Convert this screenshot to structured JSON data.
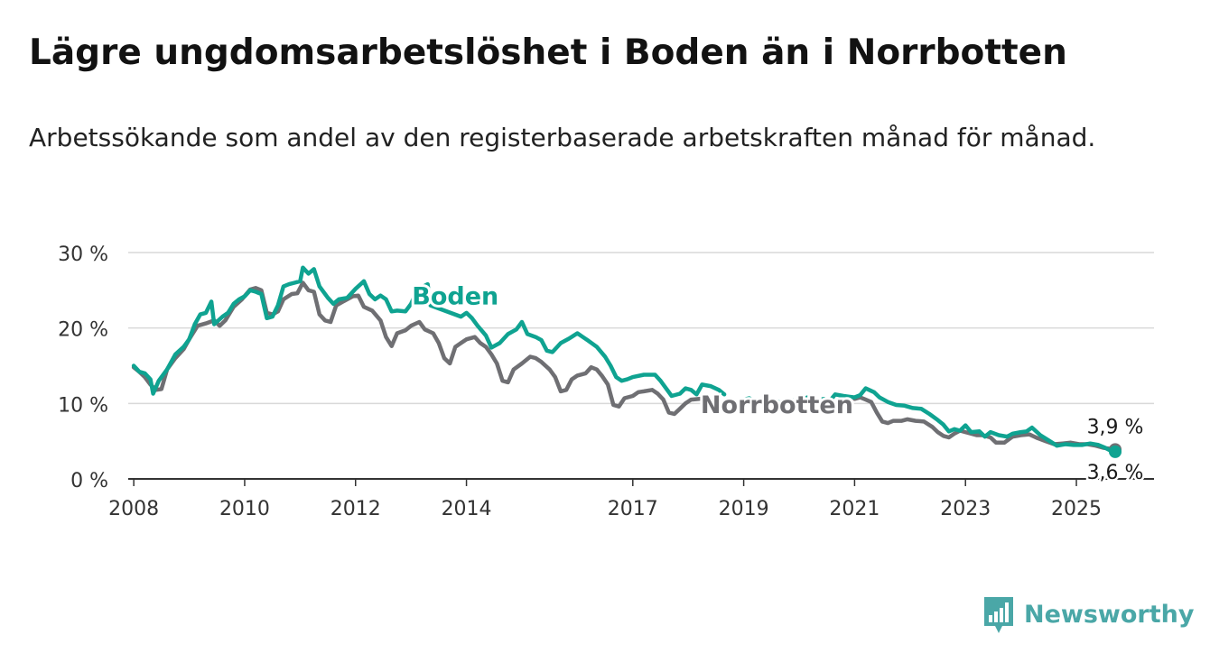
{
  "title": "Lägre ungdomsarbetslöshet i Boden än i Norrbotten",
  "subtitle": "Arbetssökande som andel av den registerbaserade arbetskraften månad för månad.",
  "brand": {
    "name": "Newsworthy",
    "icon": "newsworthy-logo-icon"
  },
  "colors": {
    "boden": "#0fa391",
    "norrbotten": "#6f6f73",
    "grid": "#d9d9d9",
    "axis": "#333333"
  },
  "chart_data": {
    "type": "line",
    "ylim": [
      0,
      30
    ],
    "xlim": [
      2007.9,
      2026.4
    ],
    "yticks": [
      {
        "value": 0,
        "label": "0 %"
      },
      {
        "value": 10,
        "label": "10 %"
      },
      {
        "value": 20,
        "label": "20 %"
      },
      {
        "value": 30,
        "label": "30 %"
      }
    ],
    "xticks": [
      {
        "value": 2008,
        "label": "2008"
      },
      {
        "value": 2010,
        "label": "2010"
      },
      {
        "value": 2012,
        "label": "2012"
      },
      {
        "value": 2014,
        "label": "2014"
      },
      {
        "value": 2017,
        "label": "2017"
      },
      {
        "value": 2019,
        "label": "2019"
      },
      {
        "value": 2021,
        "label": "2021"
      },
      {
        "value": 2023,
        "label": "2023"
      },
      {
        "value": 2025,
        "label": "2025"
      }
    ],
    "grid": true,
    "series": [
      {
        "name": "Boden",
        "color_key": "boden",
        "end_label": "3,6 %",
        "points": [
          [
            2008.0,
            15.0
          ],
          [
            2008.1,
            14.2
          ],
          [
            2008.2,
            14.0
          ],
          [
            2008.3,
            13.2
          ],
          [
            2008.35,
            11.3
          ],
          [
            2008.45,
            13.0
          ],
          [
            2008.6,
            14.5
          ],
          [
            2008.75,
            16.5
          ],
          [
            2008.9,
            17.5
          ],
          [
            2009.0,
            18.5
          ],
          [
            2009.1,
            20.5
          ],
          [
            2009.2,
            21.8
          ],
          [
            2009.3,
            22.0
          ],
          [
            2009.4,
            23.5
          ],
          [
            2009.45,
            20.5
          ],
          [
            2009.6,
            21.5
          ],
          [
            2009.7,
            22.0
          ],
          [
            2009.8,
            23.2
          ],
          [
            2009.9,
            23.8
          ],
          [
            2010.0,
            24.2
          ],
          [
            2010.1,
            25.0
          ],
          [
            2010.2,
            24.8
          ],
          [
            2010.3,
            24.5
          ],
          [
            2010.4,
            21.3
          ],
          [
            2010.5,
            21.5
          ],
          [
            2010.6,
            23.0
          ],
          [
            2010.7,
            25.5
          ],
          [
            2010.8,
            25.8
          ],
          [
            2010.9,
            26.0
          ],
          [
            2011.0,
            26.2
          ],
          [
            2011.05,
            28.0
          ],
          [
            2011.15,
            27.2
          ],
          [
            2011.25,
            27.8
          ],
          [
            2011.35,
            25.5
          ],
          [
            2011.5,
            24.0
          ],
          [
            2011.6,
            23.2
          ],
          [
            2011.7,
            23.8
          ],
          [
            2011.85,
            24.0
          ],
          [
            2012.0,
            25.2
          ],
          [
            2012.15,
            26.2
          ],
          [
            2012.25,
            24.5
          ],
          [
            2012.35,
            23.8
          ],
          [
            2012.45,
            24.3
          ],
          [
            2012.55,
            23.8
          ],
          [
            2012.65,
            22.2
          ],
          [
            2012.75,
            22.3
          ],
          [
            2012.9,
            22.2
          ],
          [
            2013.0,
            23.2
          ],
          [
            2013.1,
            24.8
          ],
          [
            2013.2,
            25.4
          ],
          [
            2013.3,
            25.8
          ],
          [
            2013.35,
            23.0
          ],
          [
            2013.9,
            21.5
          ],
          [
            2014.0,
            22.0
          ],
          [
            2014.1,
            21.3
          ],
          [
            2014.2,
            20.3
          ],
          [
            2014.35,
            19.0
          ],
          [
            2014.45,
            17.4
          ],
          [
            2014.6,
            18.0
          ],
          [
            2014.75,
            19.2
          ],
          [
            2014.9,
            19.8
          ],
          [
            2015.0,
            20.8
          ],
          [
            2015.1,
            19.2
          ],
          [
            2015.25,
            18.8
          ],
          [
            2015.35,
            18.4
          ],
          [
            2015.45,
            17.0
          ],
          [
            2015.55,
            16.8
          ],
          [
            2015.7,
            18.0
          ],
          [
            2015.85,
            18.6
          ],
          [
            2016.0,
            19.3
          ],
          [
            2016.1,
            18.8
          ],
          [
            2016.2,
            18.3
          ],
          [
            2016.35,
            17.5
          ],
          [
            2016.5,
            16.2
          ],
          [
            2016.6,
            15.0
          ],
          [
            2016.7,
            13.5
          ],
          [
            2016.8,
            13.0
          ],
          [
            2016.9,
            13.2
          ],
          [
            2017.0,
            13.5
          ],
          [
            2017.2,
            13.8
          ],
          [
            2017.4,
            13.8
          ],
          [
            2017.5,
            13.0
          ],
          [
            2017.6,
            12.0
          ],
          [
            2017.7,
            11.0
          ],
          [
            2017.85,
            11.3
          ],
          [
            2017.95,
            12.0
          ],
          [
            2018.05,
            11.8
          ],
          [
            2018.15,
            11.2
          ],
          [
            2018.25,
            12.5
          ],
          [
            2018.4,
            12.3
          ],
          [
            2018.55,
            11.8
          ],
          [
            2018.65,
            11.2
          ]
        ],
        "points2": [
          [
            2019.0,
            10.5
          ],
          [
            2019.1,
            10.7
          ],
          [
            2019.2,
            10.3
          ],
          [
            2019.3,
            10.5
          ],
          [
            2019.4,
            10.0
          ],
          [
            2019.5,
            10.0
          ],
          [
            2019.6,
            10.3
          ],
          [
            2019.7,
            9.9
          ],
          [
            2019.8,
            10.1
          ],
          [
            2019.9,
            10.4
          ],
          [
            2020.0,
            10.4
          ],
          [
            2020.15,
            10.8
          ],
          [
            2020.25,
            10.6
          ],
          [
            2020.35,
            10.5
          ],
          [
            2020.45,
            10.6
          ],
          [
            2020.55,
            10.3
          ],
          [
            2020.65,
            11.2
          ],
          [
            2020.8,
            11.0
          ],
          [
            2020.9,
            10.9
          ],
          [
            2021.0,
            10.8
          ],
          [
            2021.1,
            11.1
          ],
          [
            2021.2,
            12.0
          ],
          [
            2021.35,
            11.5
          ],
          [
            2021.45,
            10.8
          ],
          [
            2021.6,
            10.2
          ],
          [
            2021.75,
            9.8
          ],
          [
            2021.9,
            9.7
          ],
          [
            2022.05,
            9.4
          ],
          [
            2022.2,
            9.3
          ],
          [
            2022.35,
            8.6
          ],
          [
            2022.5,
            7.8
          ],
          [
            2022.6,
            7.2
          ],
          [
            2022.7,
            6.3
          ],
          [
            2022.8,
            6.6
          ],
          [
            2022.9,
            6.4
          ],
          [
            2023.0,
            7.1
          ],
          [
            2023.1,
            6.2
          ],
          [
            2023.25,
            6.3
          ],
          [
            2023.35,
            5.6
          ],
          [
            2023.45,
            6.2
          ],
          [
            2023.6,
            5.8
          ],
          [
            2023.75,
            5.6
          ],
          [
            2023.85,
            6.0
          ],
          [
            2024.0,
            6.2
          ],
          [
            2024.1,
            6.3
          ],
          [
            2024.2,
            6.8
          ],
          [
            2024.35,
            5.8
          ],
          [
            2024.5,
            5.1
          ],
          [
            2024.65,
            4.4
          ],
          [
            2024.8,
            4.6
          ],
          [
            2024.95,
            4.5
          ],
          [
            2025.1,
            4.5
          ],
          [
            2025.25,
            4.7
          ],
          [
            2025.4,
            4.5
          ],
          [
            2025.5,
            4.2
          ],
          [
            2025.6,
            3.8
          ],
          [
            2025.7,
            3.6
          ]
        ]
      },
      {
        "name": "Norrbotten",
        "color_key": "norrbotten",
        "end_label": "3,9 %",
        "points": [
          [
            2008.0,
            14.8
          ],
          [
            2008.1,
            14.2
          ],
          [
            2008.2,
            13.5
          ],
          [
            2008.3,
            12.5
          ],
          [
            2008.4,
            11.8
          ],
          [
            2008.5,
            11.9
          ],
          [
            2008.6,
            14.5
          ],
          [
            2008.75,
            16.0
          ],
          [
            2008.9,
            17.2
          ],
          [
            2009.0,
            18.5
          ],
          [
            2009.15,
            20.3
          ],
          [
            2009.3,
            20.6
          ],
          [
            2009.45,
            21.0
          ],
          [
            2009.55,
            20.3
          ],
          [
            2009.65,
            21.0
          ],
          [
            2009.8,
            22.8
          ],
          [
            2009.95,
            23.8
          ],
          [
            2010.1,
            25.1
          ],
          [
            2010.2,
            25.3
          ],
          [
            2010.3,
            25.0
          ],
          [
            2010.4,
            22.0
          ],
          [
            2010.5,
            21.8
          ],
          [
            2010.6,
            22.2
          ],
          [
            2010.7,
            23.8
          ],
          [
            2010.85,
            24.5
          ],
          [
            2010.95,
            24.6
          ],
          [
            2011.05,
            26.0
          ],
          [
            2011.15,
            25.0
          ],
          [
            2011.25,
            24.8
          ],
          [
            2011.35,
            21.8
          ],
          [
            2011.45,
            21.0
          ],
          [
            2011.55,
            20.8
          ],
          [
            2011.65,
            23.0
          ],
          [
            2011.8,
            23.6
          ],
          [
            2011.95,
            24.2
          ],
          [
            2012.05,
            24.3
          ],
          [
            2012.15,
            22.8
          ],
          [
            2012.3,
            22.3
          ],
          [
            2012.45,
            21.0
          ],
          [
            2012.55,
            18.8
          ],
          [
            2012.65,
            17.6
          ],
          [
            2012.75,
            19.3
          ],
          [
            2012.9,
            19.7
          ],
          [
            2013.0,
            20.3
          ],
          [
            2013.15,
            20.8
          ],
          [
            2013.25,
            19.8
          ],
          [
            2013.4,
            19.3
          ],
          [
            2013.5,
            18.0
          ],
          [
            2013.6,
            16.0
          ],
          [
            2013.7,
            15.3
          ],
          [
            2013.8,
            17.5
          ],
          [
            2013.9,
            18.0
          ],
          [
            2014.0,
            18.5
          ],
          [
            2014.15,
            18.8
          ],
          [
            2014.25,
            18.0
          ],
          [
            2014.35,
            17.5
          ],
          [
            2014.45,
            16.5
          ],
          [
            2014.55,
            15.3
          ],
          [
            2014.65,
            13.0
          ],
          [
            2014.75,
            12.8
          ],
          [
            2014.85,
            14.5
          ],
          [
            2015.0,
            15.3
          ],
          [
            2015.15,
            16.2
          ],
          [
            2015.25,
            16.0
          ],
          [
            2015.35,
            15.5
          ],
          [
            2015.5,
            14.5
          ],
          [
            2015.6,
            13.5
          ],
          [
            2015.7,
            11.6
          ],
          [
            2015.8,
            11.8
          ],
          [
            2015.9,
            13.2
          ],
          [
            2016.0,
            13.7
          ],
          [
            2016.15,
            14.0
          ],
          [
            2016.25,
            14.8
          ],
          [
            2016.35,
            14.5
          ],
          [
            2016.45,
            13.6
          ],
          [
            2016.55,
            12.5
          ],
          [
            2016.65,
            9.8
          ],
          [
            2016.75,
            9.6
          ],
          [
            2016.85,
            10.7
          ],
          [
            2017.0,
            11.0
          ],
          [
            2017.1,
            11.5
          ],
          [
            2017.2,
            11.6
          ],
          [
            2017.35,
            11.8
          ],
          [
            2017.45,
            11.3
          ],
          [
            2017.55,
            10.5
          ],
          [
            2017.65,
            8.8
          ],
          [
            2017.75,
            8.6
          ],
          [
            2017.85,
            9.3
          ],
          [
            2017.95,
            10.0
          ],
          [
            2018.05,
            10.5
          ],
          [
            2018.2,
            10.6
          ],
          [
            2018.3,
            10.7
          ],
          [
            2018.45,
            10.4
          ]
        ],
        "points2": [
          [
            2021.0,
            10.6
          ],
          [
            2021.1,
            10.8
          ],
          [
            2021.2,
            10.5
          ],
          [
            2021.3,
            10.2
          ],
          [
            2021.4,
            8.8
          ],
          [
            2021.5,
            7.6
          ],
          [
            2021.6,
            7.4
          ],
          [
            2021.7,
            7.7
          ],
          [
            2021.85,
            7.7
          ],
          [
            2021.95,
            7.9
          ],
          [
            2022.1,
            7.7
          ],
          [
            2022.25,
            7.6
          ],
          [
            2022.4,
            6.9
          ],
          [
            2022.5,
            6.2
          ],
          [
            2022.6,
            5.7
          ],
          [
            2022.7,
            5.5
          ],
          [
            2022.8,
            6.0
          ],
          [
            2022.9,
            6.4
          ],
          [
            2023.05,
            6.1
          ],
          [
            2023.2,
            5.8
          ],
          [
            2023.3,
            5.8
          ],
          [
            2023.45,
            5.5
          ],
          [
            2023.55,
            4.8
          ],
          [
            2023.7,
            4.8
          ],
          [
            2023.85,
            5.6
          ],
          [
            2024.0,
            5.8
          ],
          [
            2024.15,
            5.9
          ],
          [
            2024.3,
            5.4
          ],
          [
            2024.45,
            5.0
          ],
          [
            2024.6,
            4.6
          ],
          [
            2024.75,
            4.7
          ],
          [
            2024.9,
            4.8
          ],
          [
            2025.05,
            4.6
          ],
          [
            2025.2,
            4.6
          ],
          [
            2025.35,
            4.4
          ],
          [
            2025.5,
            4.1
          ],
          [
            2025.6,
            4.0
          ],
          [
            2025.7,
            3.9
          ]
        ]
      }
    ],
    "annotations": [
      {
        "text": "Boden",
        "series": "Boden",
        "x": 2013.8,
        "y": 23.1
      },
      {
        "text": "Norrbotten",
        "series": "Norrbotten",
        "x": 2019.6,
        "y": 8.7
      }
    ]
  }
}
